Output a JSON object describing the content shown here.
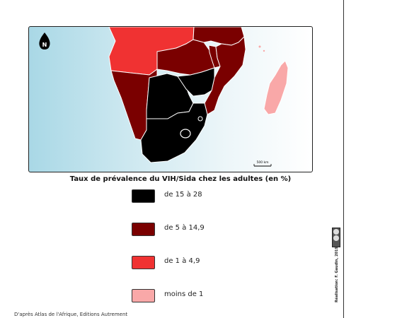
{
  "map": {
    "north_label": "N",
    "scale_label": "500 km"
  },
  "legend": {
    "title": "Taux de prévalence du VIH/Sida chez les adultes (en %)",
    "classes": [
      {
        "label": "de 15 à 28",
        "color": "#000000"
      },
      {
        "label": "de 5 à 14,9",
        "color": "#7a0000"
      },
      {
        "label": "de 1 à 4,9",
        "color": "#f03232"
      },
      {
        "label": "moins de 1",
        "color": "#f9a8a8"
      }
    ]
  },
  "source": "D'après Atlas de l'Afrique, Editions Autrement",
  "credit": "Réalisation: F. Gaudin, 2019",
  "colors": {
    "ocean": "#a9d8e6",
    "border": "#ffffff"
  }
}
